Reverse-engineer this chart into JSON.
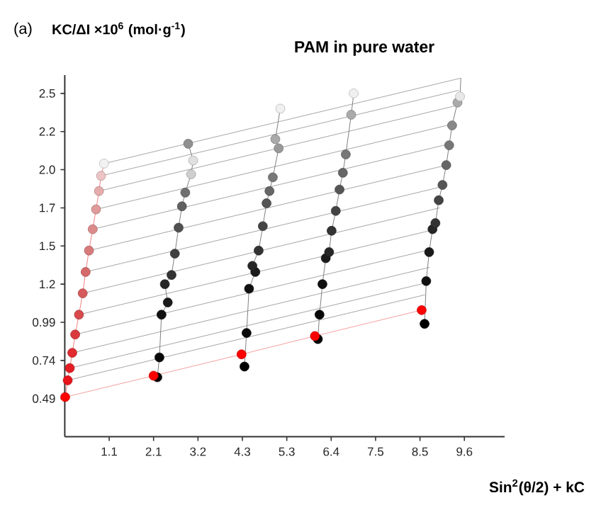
{
  "chart_data": {
    "type": "scatter",
    "title": "PAM in pure water",
    "xlabel": "Sin$^{2}$(θ/2) + kC",
    "ylabel": "KC/ΔI ×10$^{6}$ (mol·g$^{-1}$)",
    "annotations": [
      "(a)"
    ],
    "xlim": [
      0,
      10.55
    ],
    "ylim": [
      0.24,
      2.61
    ],
    "xticks": [
      {
        "value": 1.065,
        "label": "1.1"
      },
      {
        "value": 2.13,
        "label": "2.1"
      },
      {
        "value": 3.195,
        "label": "3.2"
      },
      {
        "value": 4.26,
        "label": "4.3"
      },
      {
        "value": 5.325,
        "label": "5.3"
      },
      {
        "value": 6.39,
        "label": "6.4"
      },
      {
        "value": 7.455,
        "label": "7.5"
      },
      {
        "value": 8.52,
        "label": "8.5"
      },
      {
        "value": 9.585,
        "label": "9.6"
      }
    ],
    "yticks": [
      0.49,
      0.74,
      0.99,
      {
        "value": 1.24,
        "label": "1.2"
      },
      {
        "value": 1.49,
        "label": "1.5"
      },
      {
        "value": 1.74,
        "label": "1.7"
      },
      {
        "value": 1.99,
        "label": "2.0"
      },
      {
        "value": 2.24,
        "label": "2.2"
      },
      {
        "value": 2.49,
        "label": "2.5"
      }
    ],
    "series": [
      {
        "type": "line",
        "color": "#a6a6a6",
        "x": [
          0.07,
          8.64
        ],
        "values": [
          0.61,
          1.17
        ]
      },
      {
        "type": "line",
        "color": "#a6a6a6",
        "x": [
          0.12,
          8.69
        ],
        "values": [
          0.69,
          1.25
        ]
      },
      {
        "type": "line",
        "color": "#a6a6a6",
        "x": [
          0.18,
          8.75
        ],
        "values": [
          0.79,
          1.35
        ]
      },
      {
        "type": "line",
        "color": "#a6a6a6",
        "x": [
          0.25,
          8.82
        ],
        "values": [
          0.91,
          1.47
        ]
      },
      {
        "type": "line",
        "color": "#a6a6a6",
        "x": [
          0.34,
          8.9
        ],
        "values": [
          1.04,
          1.6
        ]
      },
      {
        "type": "line",
        "color": "#a6a6a6",
        "x": [
          0.43,
          8.99
        ],
        "values": [
          1.18,
          1.74
        ]
      },
      {
        "type": "line",
        "color": "#a6a6a6",
        "x": [
          0.5,
          9.07
        ],
        "values": [
          1.32,
          1.88
        ]
      },
      {
        "type": "line",
        "color": "#a6a6a6",
        "x": [
          0.58,
          9.16
        ],
        "values": [
          1.46,
          2.02
        ]
      },
      {
        "type": "line",
        "color": "#a6a6a6",
        "x": [
          0.67,
          9.24
        ],
        "values": [
          1.6,
          2.16
        ]
      },
      {
        "type": "line",
        "color": "#a6a6a6",
        "x": [
          0.75,
          9.32
        ],
        "values": [
          1.73,
          2.29
        ]
      },
      {
        "type": "line",
        "color": "#a6a6a6",
        "x": [
          0.82,
          9.39
        ],
        "values": [
          1.85,
          2.41
        ]
      },
      {
        "type": "line",
        "color": "#a6a6a6",
        "x": [
          0.87,
          9.45
        ],
        "values": [
          1.95,
          2.51
        ]
      },
      {
        "type": "line",
        "color": "#a6a6a6",
        "x": [
          0.94,
          9.5
        ],
        "values": [
          2.03,
          2.59
        ]
      },
      {
        "type": "line",
        "marker": "circle",
        "color": "#f08080",
        "x": [
          0.01,
          0.07,
          0.12,
          0.18,
          0.25,
          0.34,
          0.43,
          0.5,
          0.58,
          0.67,
          0.75,
          0.82,
          0.87,
          0.94
        ],
        "values": [
          0.5,
          0.61,
          0.69,
          0.79,
          0.91,
          1.04,
          1.18,
          1.32,
          1.46,
          1.6,
          1.73,
          1.85,
          1.95,
          2.03
        ],
        "colors": [
          null,
          "#e8141b",
          "#e41d24",
          "#e02a2f",
          "#da3a3e",
          "#d84a4c",
          "#d65a5b",
          "#d66a6a",
          "#d87a7a",
          "#dc8a8a",
          "#e09a9a",
          "#e6acac",
          "#ecc4c4",
          "#f2f2f2"
        ]
      },
      {
        "type": "line",
        "marker": "circle",
        "color": "#808080",
        "x": [
          2.22,
          2.27,
          2.32,
          2.47,
          2.4,
          2.56,
          2.64,
          2.73,
          2.81,
          2.89,
          3.03,
          3.08,
          2.96
        ],
        "values": [
          0.63,
          0.76,
          1.04,
          1.12,
          1.24,
          1.3,
          1.44,
          1.61,
          1.75,
          1.84,
          1.96,
          2.05,
          2.16
        ],
        "colors": [
          "#000000",
          "#080808",
          "#101010",
          "#1a1a1a",
          "#262626",
          "#333333",
          "#404040",
          "#505050",
          "#606060",
          "#707070",
          "#cfcfcf",
          "#e0e0e0",
          "#909090"
        ]
      },
      {
        "type": "line",
        "marker": "circle",
        "color": "#808080",
        "x": [
          4.31,
          4.36,
          4.42,
          4.57,
          4.5,
          4.65,
          4.75,
          4.84,
          4.91,
          4.99,
          5.13,
          5.05,
          5.17
        ],
        "values": [
          0.7,
          0.92,
          1.21,
          1.32,
          1.36,
          1.46,
          1.62,
          1.77,
          1.85,
          1.94,
          2.13,
          2.19,
          2.39
        ],
        "colors": [
          "#000000",
          "#080808",
          "#101010",
          "#1a1a1a",
          "#262626",
          "#333333",
          "#444444",
          "#555555",
          "#666666",
          "#777777",
          "#999999",
          "#aaaaaa",
          "#f0f0f0"
        ]
      },
      {
        "type": "line",
        "marker": "circle",
        "color": "#808080",
        "x": [
          6.07,
          6.11,
          6.18,
          6.26,
          6.34,
          6.4,
          6.5,
          6.59,
          6.67,
          6.74,
          6.85,
          6.87,
          6.93
        ],
        "values": [
          0.88,
          1.04,
          1.24,
          1.41,
          1.45,
          1.59,
          1.72,
          1.86,
          1.97,
          2.09,
          null,
          2.35,
          2.49
        ],
        "colors": [
          "#000000",
          "#080808",
          "#101010",
          "#1a1a1a",
          "#262626",
          "#333333",
          "#444444",
          "#555555",
          "#666666",
          "#777777",
          "#999999",
          "#aaaaaa",
          "#f0f0f0"
        ]
      },
      {
        "type": "line",
        "marker": "circle",
        "color": "#808080",
        "x": [
          8.63,
          8.67,
          8.74,
          8.82,
          8.89,
          8.97,
          9.06,
          9.15,
          9.22,
          9.29,
          9.42,
          9.48,
          9.5
        ],
        "values": [
          0.98,
          1.26,
          1.45,
          1.6,
          1.64,
          1.79,
          1.89,
          2.02,
          2.15,
          2.28,
          2.43,
          2.47,
          2.59
        ],
        "colors": [
          "#000000",
          "#101010",
          "#1a1a1a",
          "#262626",
          "#333333",
          "#444444",
          "#555555",
          "#666666",
          "#777777",
          "#888888",
          "#aaaaaa",
          "#e8e8e8",
          null
        ]
      },
      {
        "type": "line",
        "marker": "circle",
        "color": "#f4a0a0",
        "x": [
          0.01,
          2.13,
          4.24,
          6.0,
          8.56
        ],
        "values": [
          0.5,
          0.64,
          0.78,
          0.9,
          1.07
        ],
        "colors": [
          "#ff0000",
          "#ff0000",
          "#ff0000",
          "#ff0000",
          "#ff0000"
        ]
      }
    ]
  }
}
